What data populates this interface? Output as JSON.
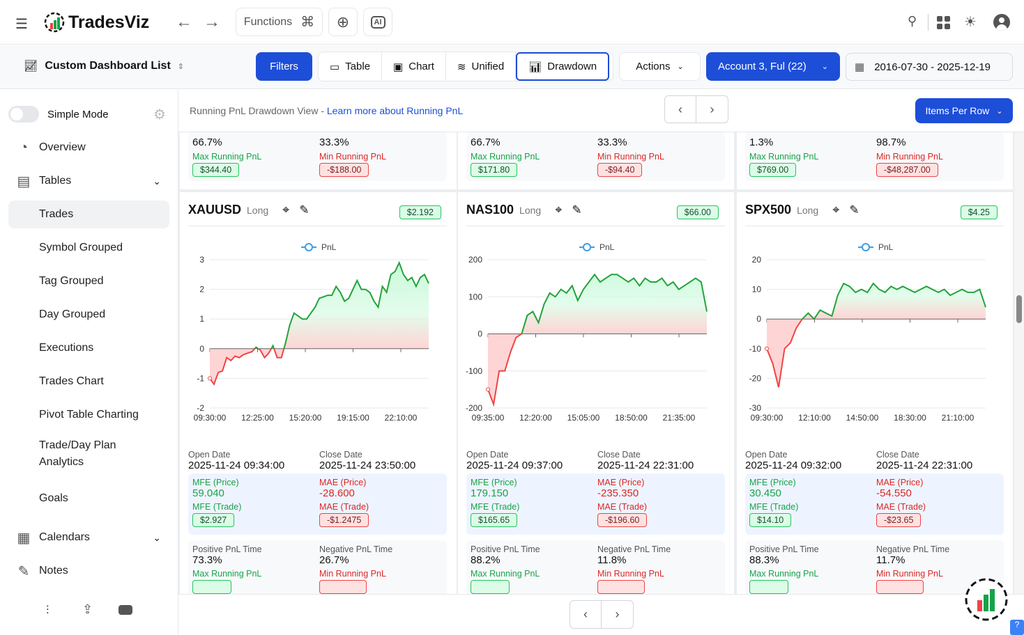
{
  "app": {
    "name": "TradesViz",
    "functions_label": "Functions"
  },
  "toolbar": {
    "dashboard_list": "Custom Dashboard List",
    "filters": "Filters",
    "views": [
      "Table",
      "Chart",
      "Unified",
      "Drawdown"
    ],
    "active_view": "Drawdown",
    "actions": "Actions",
    "account": "Account 3, Ful (22)",
    "date_range": "2016-07-30 - 2025-12-19"
  },
  "sidebar": {
    "simple_mode": "Simple Mode",
    "items": [
      {
        "label": "Overview",
        "icon": "pie-chart-icon",
        "level": 0
      },
      {
        "label": "Tables",
        "icon": "table-icon",
        "level": 0,
        "expandable": true
      },
      {
        "label": "Trades",
        "level": 1,
        "selected": true
      },
      {
        "label": "Symbol Grouped",
        "level": 1
      },
      {
        "label": "Tag Grouped",
        "level": 1
      },
      {
        "label": "Day Grouped",
        "level": 1
      },
      {
        "label": "Executions",
        "level": 1
      },
      {
        "label": "Trades Chart",
        "level": 1
      },
      {
        "label": "Pivot Table Charting",
        "level": 1
      },
      {
        "label": "Trade/Day Plan Analytics",
        "level": 1
      },
      {
        "label": "Goals",
        "level": 1
      },
      {
        "label": "Calendars",
        "icon": "calendar-icon",
        "level": 0,
        "expandable": true
      },
      {
        "label": "Notes",
        "icon": "notes-icon",
        "level": 0
      }
    ]
  },
  "subheader": {
    "title": "Running PnL Drawdown View - ",
    "link": "Learn more about Running PnL",
    "items_per_row": "Items Per Row"
  },
  "labels": {
    "max_run": "Max Running PnL",
    "min_run": "Min Running PnL",
    "open": "Open Date",
    "close": "Close Date",
    "mfe_p": "MFE (Price)",
    "mae_p": "MAE (Price)",
    "mfe_t": "MFE (Trade)",
    "mae_t": "MAE (Trade)",
    "pos": "Positive PnL Time",
    "neg": "Negative PnL Time",
    "legend": "PnL"
  },
  "prev_cards": [
    {
      "pos": "66.7%",
      "neg": "33.3%",
      "max": "$344.40",
      "min": "-$188.00"
    },
    {
      "pos": "66.7%",
      "neg": "33.3%",
      "max": "$171.80",
      "min": "-$94.40"
    },
    {
      "pos": "1.3%",
      "neg": "98.7%",
      "max": "$769.00",
      "min": "-$48,287.00"
    }
  ],
  "cards": [
    {
      "symbol": "XAUUSD",
      "side": "Long",
      "pnl": "$2.192",
      "open": "2025-11-24 09:34:00",
      "close": "2025-11-24 23:50:00",
      "mfe_p": "59.040",
      "mae_p": "-28.600",
      "mfe_t": "$2.927",
      "mae_t": "-$1.2475",
      "pos": "73.3%",
      "neg": "26.7%"
    },
    {
      "symbol": "NAS100",
      "side": "Long",
      "pnl": "$66.00",
      "open": "2025-11-24 09:37:00",
      "close": "2025-11-24 22:31:00",
      "mfe_p": "179.150",
      "mae_p": "-235.350",
      "mfe_t": "$165.65",
      "mae_t": "-$196.60",
      "pos": "88.2%",
      "neg": "11.8%"
    },
    {
      "symbol": "SPX500",
      "side": "Long",
      "pnl": "$4.25",
      "open": "2025-11-24 09:32:00",
      "close": "2025-11-24 22:31:00",
      "mfe_p": "30.450",
      "mae_p": "-54.550",
      "mfe_t": "$14.10",
      "mae_t": "-$23.65",
      "pos": "88.3%",
      "neg": "11.7%"
    }
  ],
  "chart_data": [
    {
      "type": "area",
      "legend": "PnL",
      "ylim": [
        -2,
        3
      ],
      "yticks": [
        "3",
        "2",
        "1",
        "0",
        "-1",
        "-2"
      ],
      "xticks": [
        "09:30:00",
        "12:25:00",
        "15:20:00",
        "19:15:00",
        "22:10:00"
      ],
      "values": [
        -1,
        -1.2,
        -0.8,
        -0.75,
        -0.3,
        -0.4,
        -0.25,
        -0.3,
        -0.2,
        -0.15,
        -0.1,
        0.05,
        -0.05,
        -0.3,
        -0.15,
        0.1,
        -0.3,
        -0.3,
        0.2,
        0.8,
        1.2,
        1.1,
        1.0,
        1.0,
        1.2,
        1.4,
        1.7,
        1.75,
        1.8,
        1.8,
        2.1,
        1.9,
        1.6,
        1.7,
        2.0,
        2.3,
        2.0,
        2.0,
        1.9,
        1.6,
        1.4,
        2.1,
        1.9,
        2.5,
        2.6,
        2.9,
        2.5,
        2.3,
        2.4,
        2.1,
        2.4,
        2.5,
        2.2
      ]
    },
    {
      "type": "area",
      "legend": "PnL",
      "ylim": [
        -200,
        200
      ],
      "yticks": [
        "200",
        "100",
        "0",
        "-100",
        "-200"
      ],
      "xticks": [
        "09:35:00",
        "12:20:00",
        "15:05:00",
        "18:50:00",
        "21:35:00"
      ],
      "values": [
        -150,
        -190,
        -100,
        -100,
        -50,
        -10,
        0,
        50,
        60,
        30,
        80,
        110,
        100,
        120,
        110,
        130,
        90,
        120,
        140,
        160,
        140,
        150,
        160,
        160,
        150,
        140,
        150,
        130,
        150,
        140,
        140,
        150,
        130,
        140,
        120,
        130,
        140,
        150,
        140,
        60
      ]
    },
    {
      "type": "area",
      "legend": "PnL",
      "ylim": [
        -30,
        20
      ],
      "yticks": [
        "20",
        "10",
        "0",
        "-10",
        "-20",
        "-30"
      ],
      "xticks": [
        "09:30:00",
        "12:10:00",
        "14:50:00",
        "18:30:00",
        "21:10:00"
      ],
      "values": [
        -10,
        -15,
        -23,
        -10,
        -8,
        -3,
        0,
        2,
        0,
        3,
        2,
        1,
        8,
        12,
        11,
        9,
        10,
        9,
        12,
        10,
        9,
        11,
        10,
        11,
        10,
        9,
        10,
        11,
        10,
        9,
        10,
        8,
        9,
        10,
        9,
        9,
        10,
        4
      ]
    }
  ],
  "colors": {
    "accent": "#1d4ed8",
    "green": "#16a34a",
    "red": "#ef4444"
  }
}
